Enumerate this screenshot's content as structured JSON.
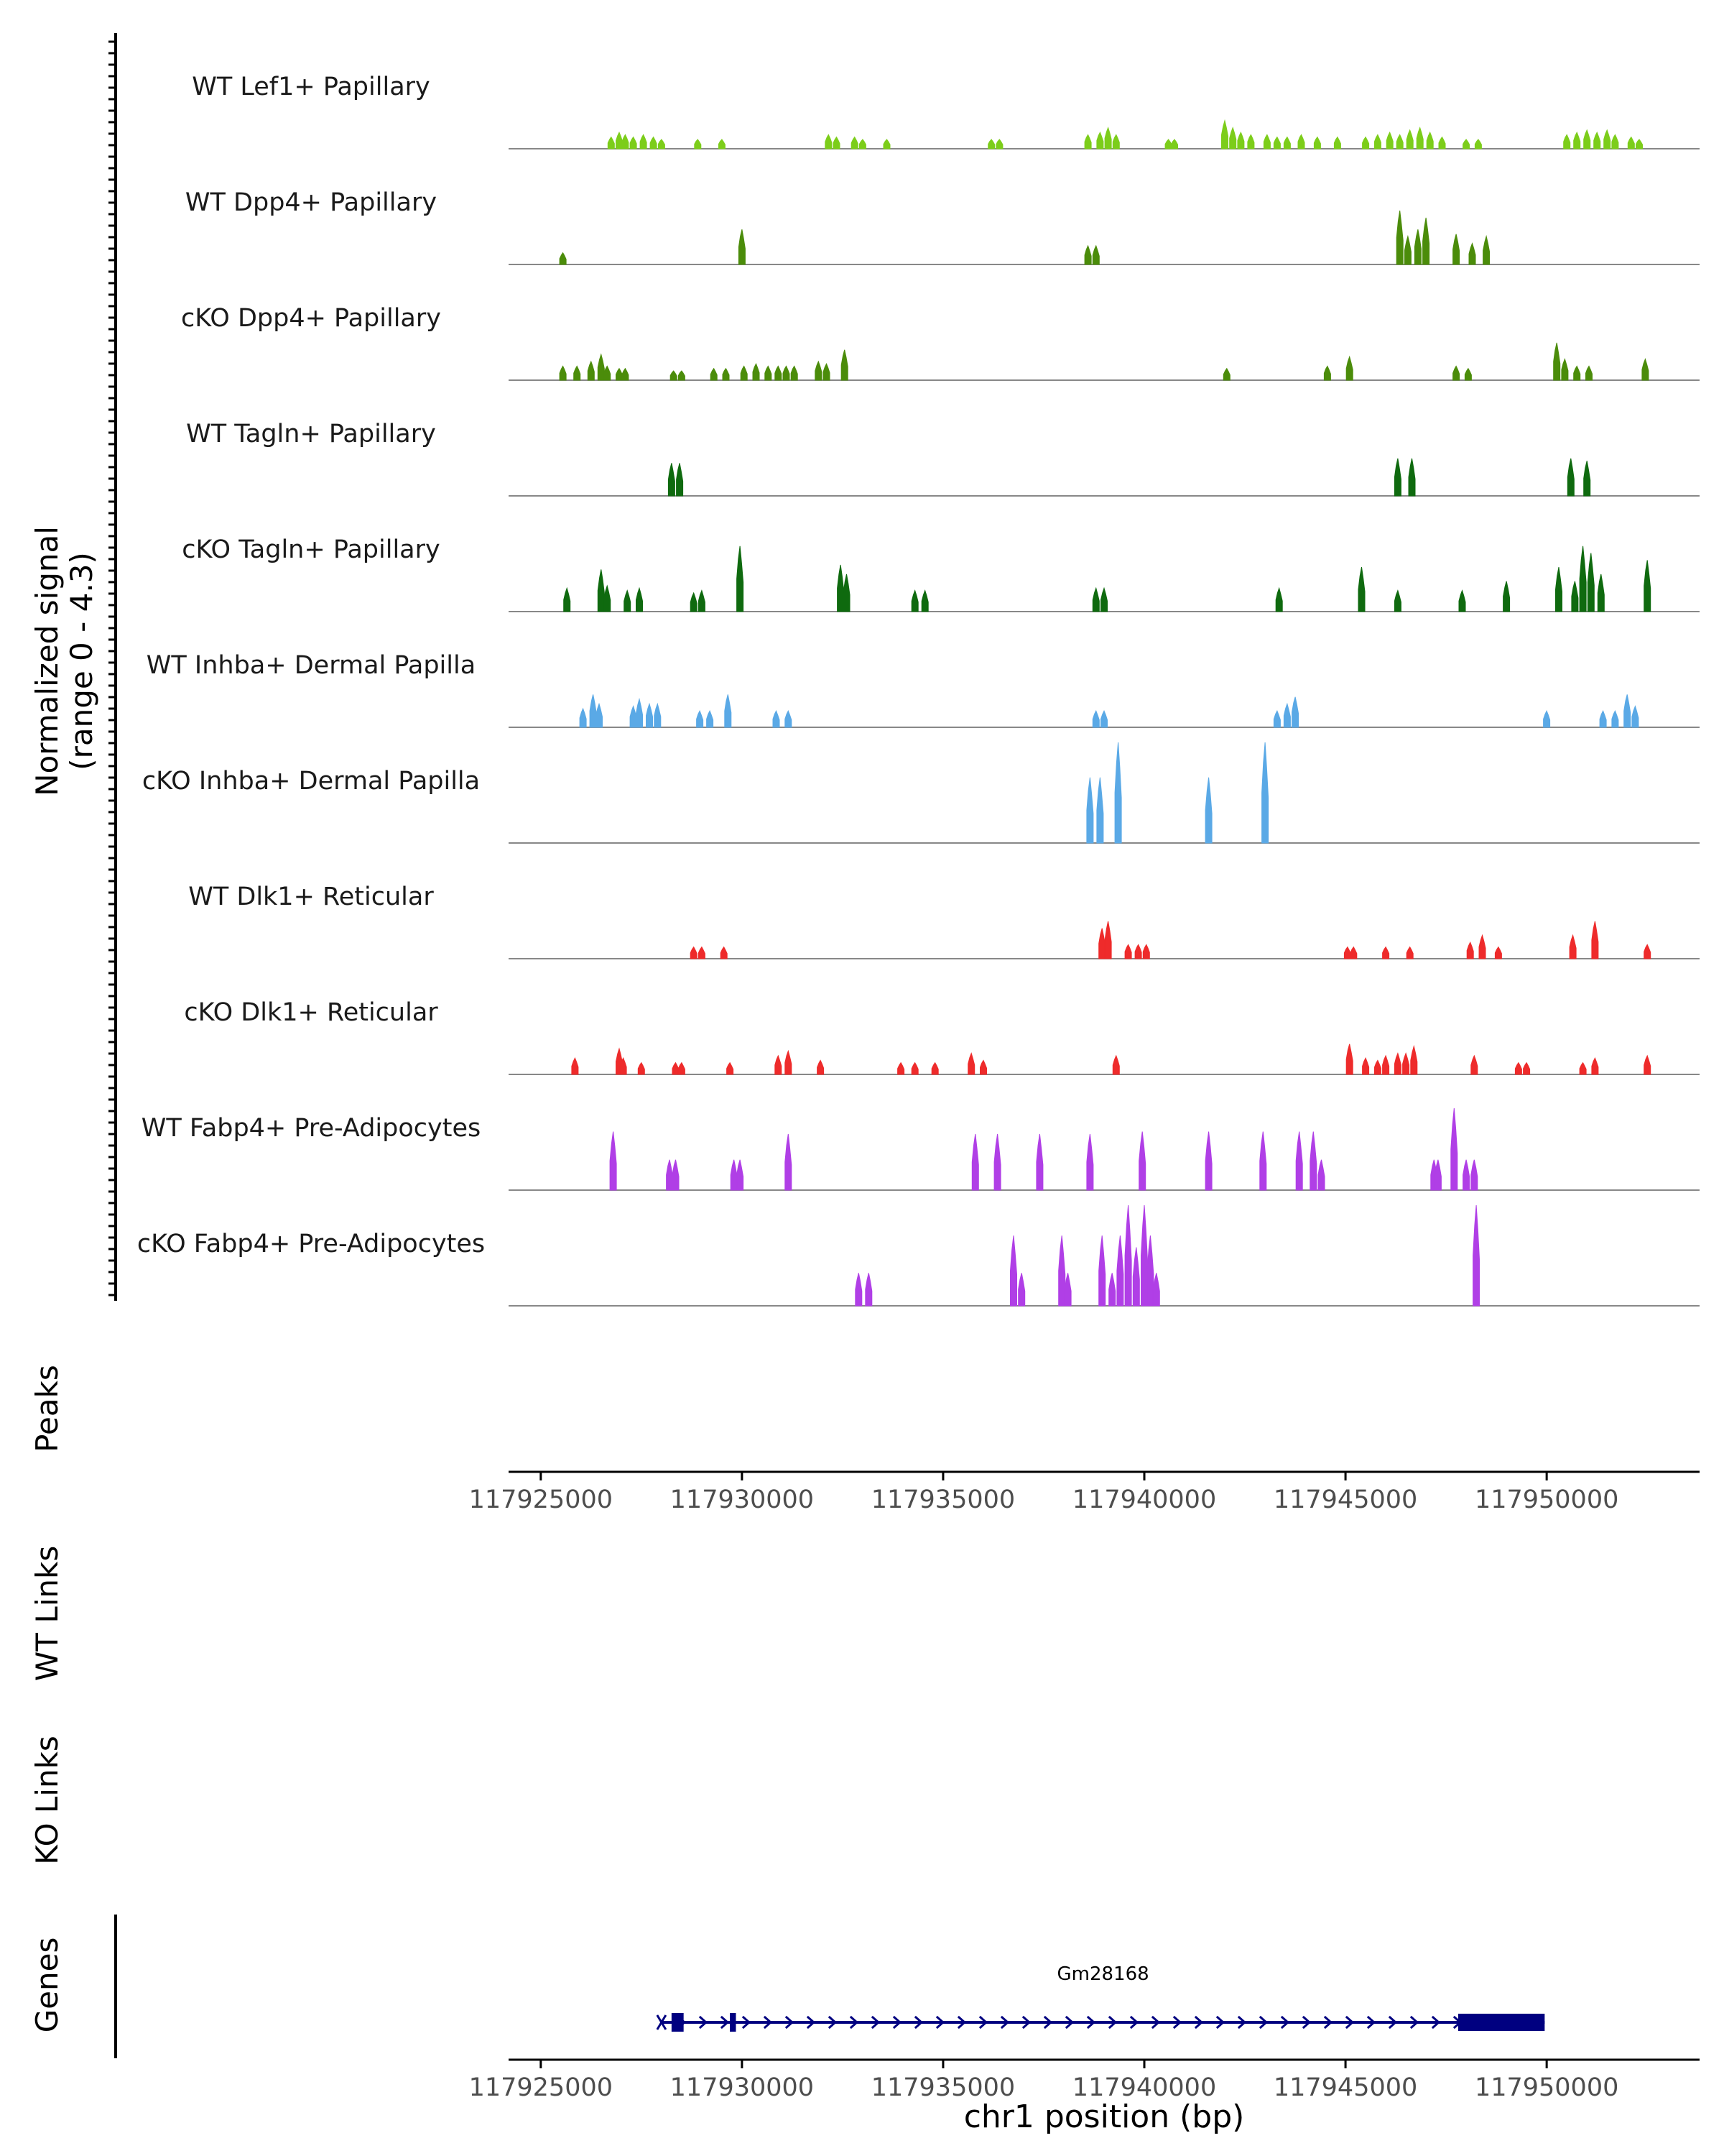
{
  "chart_data": {
    "type": "area",
    "title": "",
    "signal_axis": {
      "label_line1": "Normalized signal",
      "label_line2": "(range 0 - 4.3)",
      "ylim": [
        0,
        4.3
      ]
    },
    "colors": {
      "lef1": "#7CCD1A",
      "dpp4": "#4B8C0A",
      "tagln": "#0F6A0F",
      "inhba": "#5AA9E6",
      "dlk1": "#EE2B2B",
      "fabp4": "#B03FE6",
      "gene": "#000080",
      "baseline": "#888888",
      "axis": "#000000"
    },
    "tracks": [
      {
        "name": "WT Lef1+ Papillary",
        "color_key": "lef1",
        "peaks": [
          [
            117926750,
            0.5
          ],
          [
            117926950,
            0.7
          ],
          [
            117927100,
            0.6
          ],
          [
            117927300,
            0.5
          ],
          [
            117927550,
            0.6
          ],
          [
            117927800,
            0.5
          ],
          [
            117928000,
            0.4
          ],
          [
            117928900,
            0.4
          ],
          [
            117929500,
            0.4
          ],
          [
            117932150,
            0.6
          ],
          [
            117932350,
            0.5
          ],
          [
            117932800,
            0.5
          ],
          [
            117933000,
            0.4
          ],
          [
            117933600,
            0.4
          ],
          [
            117936200,
            0.4
          ],
          [
            117936400,
            0.4
          ],
          [
            117938600,
            0.6
          ],
          [
            117938900,
            0.7
          ],
          [
            117939100,
            0.9
          ],
          [
            117939300,
            0.6
          ],
          [
            117940600,
            0.4
          ],
          [
            117940750,
            0.4
          ],
          [
            117942000,
            1.2
          ],
          [
            117942200,
            0.9
          ],
          [
            117942400,
            0.7
          ],
          [
            117942650,
            0.6
          ],
          [
            117943050,
            0.6
          ],
          [
            117943300,
            0.5
          ],
          [
            117943550,
            0.5
          ],
          [
            117943900,
            0.6
          ],
          [
            117944300,
            0.5
          ],
          [
            117944800,
            0.5
          ],
          [
            117945500,
            0.5
          ],
          [
            117945800,
            0.6
          ],
          [
            117946100,
            0.7
          ],
          [
            117946350,
            0.6
          ],
          [
            117946600,
            0.8
          ],
          [
            117946850,
            0.9
          ],
          [
            117947100,
            0.7
          ],
          [
            117947400,
            0.5
          ],
          [
            117948000,
            0.4
          ],
          [
            117948300,
            0.4
          ],
          [
            117950500,
            0.6
          ],
          [
            117950750,
            0.7
          ],
          [
            117951000,
            0.8
          ],
          [
            117951250,
            0.7
          ],
          [
            117951500,
            0.8
          ],
          [
            117951700,
            0.6
          ],
          [
            117952100,
            0.5
          ],
          [
            117952300,
            0.4
          ]
        ]
      },
      {
        "name": "WT Dpp4+ Papillary",
        "color_key": "dpp4",
        "peaks": [
          [
            117925550,
            0.5
          ],
          [
            117930000,
            1.5
          ],
          [
            117938600,
            0.8
          ],
          [
            117938800,
            0.8
          ],
          [
            117946350,
            2.3
          ],
          [
            117946550,
            1.2
          ],
          [
            117946800,
            1.5
          ],
          [
            117947000,
            2.0
          ],
          [
            117947750,
            1.3
          ],
          [
            117948150,
            0.9
          ],
          [
            117948500,
            1.2
          ]
        ]
      },
      {
        "name": "cKO Dpp4+ Papillary",
        "color_key": "dpp4",
        "peaks": [
          [
            117925550,
            0.6
          ],
          [
            117925900,
            0.6
          ],
          [
            117926250,
            0.8
          ],
          [
            117926500,
            1.1
          ],
          [
            117926650,
            0.6
          ],
          [
            117926950,
            0.5
          ],
          [
            117927100,
            0.5
          ],
          [
            117928300,
            0.4
          ],
          [
            117928500,
            0.4
          ],
          [
            117929300,
            0.5
          ],
          [
            117929600,
            0.5
          ],
          [
            117930050,
            0.6
          ],
          [
            117930350,
            0.7
          ],
          [
            117930650,
            0.6
          ],
          [
            117930900,
            0.6
          ],
          [
            117931100,
            0.6
          ],
          [
            117931300,
            0.6
          ],
          [
            117931900,
            0.8
          ],
          [
            117932100,
            0.7
          ],
          [
            117932550,
            1.3
          ],
          [
            117942050,
            0.5
          ],
          [
            117944550,
            0.6
          ],
          [
            117945100,
            1.0
          ],
          [
            117947750,
            0.6
          ],
          [
            117948050,
            0.5
          ],
          [
            117950250,
            1.6
          ],
          [
            117950450,
            0.9
          ],
          [
            117950750,
            0.6
          ],
          [
            117951050,
            0.6
          ],
          [
            117952450,
            0.9
          ]
        ]
      },
      {
        "name": "WT Tagln+ Papillary",
        "color_key": "tagln",
        "peaks": [
          [
            117928250,
            1.4
          ],
          [
            117928450,
            1.4
          ],
          [
            117946300,
            1.6
          ],
          [
            117946650,
            1.6
          ],
          [
            117950600,
            1.6
          ],
          [
            117951000,
            1.5
          ]
        ]
      },
      {
        "name": "cKO Tagln+ Papillary",
        "color_key": "tagln",
        "peaks": [
          [
            117925650,
            1.0
          ],
          [
            117926500,
            1.8
          ],
          [
            117926650,
            1.1
          ],
          [
            117927150,
            0.9
          ],
          [
            117927450,
            1.0
          ],
          [
            117928800,
            0.8
          ],
          [
            117929000,
            0.9
          ],
          [
            117929950,
            2.8
          ],
          [
            117932450,
            2.0
          ],
          [
            117932600,
            1.6
          ],
          [
            117934300,
            0.9
          ],
          [
            117934550,
            0.9
          ],
          [
            117938800,
            1.0
          ],
          [
            117939000,
            1.0
          ],
          [
            117943350,
            1.0
          ],
          [
            117945400,
            1.9
          ],
          [
            117946300,
            0.9
          ],
          [
            117947900,
            0.9
          ],
          [
            117949000,
            1.3
          ],
          [
            117950300,
            1.9
          ],
          [
            117950700,
            1.3
          ],
          [
            117950900,
            2.8
          ],
          [
            117951100,
            2.5
          ],
          [
            117951350,
            1.6
          ],
          [
            117952500,
            2.2
          ]
        ]
      },
      {
        "name": "WT Inhba+ Dermal Papilla",
        "color_key": "inhba",
        "peaks": [
          [
            117926050,
            0.8
          ],
          [
            117926300,
            1.4
          ],
          [
            117926450,
            1.0
          ],
          [
            117927300,
            0.9
          ],
          [
            117927450,
            1.2
          ],
          [
            117927700,
            1.0
          ],
          [
            117927900,
            1.0
          ],
          [
            117928950,
            0.7
          ],
          [
            117929200,
            0.7
          ],
          [
            117929650,
            1.4
          ],
          [
            117930850,
            0.7
          ],
          [
            117931150,
            0.7
          ],
          [
            117938800,
            0.7
          ],
          [
            117939000,
            0.7
          ],
          [
            117943300,
            0.7
          ],
          [
            117943550,
            1.0
          ],
          [
            117943750,
            1.3
          ],
          [
            117950000,
            0.7
          ],
          [
            117951400,
            0.7
          ],
          [
            117951700,
            0.7
          ],
          [
            117952000,
            1.4
          ],
          [
            117952200,
            0.9
          ]
        ]
      },
      {
        "name": "cKO Inhba+ Dermal Papilla",
        "color_key": "inhba",
        "peaks": [
          [
            117938650,
            2.8
          ],
          [
            117938900,
            2.8
          ],
          [
            117939350,
            4.3
          ],
          [
            117941600,
            2.8
          ],
          [
            117943000,
            4.3
          ]
        ]
      },
      {
        "name": "WT Dlk1+ Reticular",
        "color_key": "dlk1",
        "peaks": [
          [
            117928800,
            0.5
          ],
          [
            117929000,
            0.5
          ],
          [
            117929550,
            0.5
          ],
          [
            117938950,
            1.3
          ],
          [
            117939100,
            1.6
          ],
          [
            117939600,
            0.6
          ],
          [
            117939850,
            0.6
          ],
          [
            117940050,
            0.6
          ],
          [
            117945050,
            0.5
          ],
          [
            117945200,
            0.5
          ],
          [
            117946000,
            0.5
          ],
          [
            117946600,
            0.5
          ],
          [
            117948100,
            0.7
          ],
          [
            117948400,
            1.0
          ],
          [
            117948800,
            0.5
          ],
          [
            117950650,
            1.0
          ],
          [
            117951200,
            1.6
          ],
          [
            117952500,
            0.6
          ]
        ]
      },
      {
        "name": "cKO Dlk1+ Reticular",
        "color_key": "dlk1",
        "peaks": [
          [
            117925850,
            0.7
          ],
          [
            117926950,
            1.1
          ],
          [
            117927050,
            0.7
          ],
          [
            117927500,
            0.5
          ],
          [
            117928350,
            0.5
          ],
          [
            117928500,
            0.5
          ],
          [
            117929700,
            0.5
          ],
          [
            117930900,
            0.8
          ],
          [
            117931150,
            1.0
          ],
          [
            117931950,
            0.6
          ],
          [
            117933950,
            0.5
          ],
          [
            117934300,
            0.5
          ],
          [
            117934800,
            0.5
          ],
          [
            117935700,
            0.9
          ],
          [
            117936000,
            0.6
          ],
          [
            117939300,
            0.8
          ],
          [
            117945100,
            1.3
          ],
          [
            117945500,
            0.7
          ],
          [
            117945800,
            0.6
          ],
          [
            117946000,
            0.8
          ],
          [
            117946300,
            0.9
          ],
          [
            117946500,
            0.9
          ],
          [
            117946700,
            1.2
          ],
          [
            117948200,
            0.8
          ],
          [
            117949300,
            0.5
          ],
          [
            117949500,
            0.5
          ],
          [
            117950900,
            0.5
          ],
          [
            117951200,
            0.7
          ],
          [
            117952500,
            0.8
          ]
        ]
      },
      {
        "name": "WT Fabp4+ Pre-Adipocytes",
        "color_key": "fabp4",
        "peaks": [
          [
            117926800,
            2.5
          ],
          [
            117928200,
            1.3
          ],
          [
            117928350,
            1.3
          ],
          [
            117929800,
            1.3
          ],
          [
            117929950,
            1.3
          ],
          [
            117931150,
            2.4
          ],
          [
            117935800,
            2.4
          ],
          [
            117936350,
            2.4
          ],
          [
            117937400,
            2.4
          ],
          [
            117938650,
            2.4
          ],
          [
            117939950,
            2.5
          ],
          [
            117941600,
            2.5
          ],
          [
            117942950,
            2.5
          ],
          [
            117943850,
            2.5
          ],
          [
            117944200,
            2.5
          ],
          [
            117944400,
            1.3
          ],
          [
            117947200,
            1.3
          ],
          [
            117947300,
            1.3
          ],
          [
            117947700,
            3.5
          ],
          [
            117948000,
            1.3
          ],
          [
            117948200,
            1.3
          ]
        ]
      },
      {
        "name": "cKO Fabp4+ Pre-Adipocytes",
        "color_key": "fabp4",
        "peaks": [
          [
            117932900,
            1.4
          ],
          [
            117933150,
            1.4
          ],
          [
            117936750,
            3.0
          ],
          [
            117936950,
            1.4
          ],
          [
            117937950,
            3.0
          ],
          [
            117938100,
            1.4
          ],
          [
            117938950,
            3.0
          ],
          [
            117939200,
            1.4
          ],
          [
            117939400,
            3.0
          ],
          [
            117939600,
            4.3
          ],
          [
            117939800,
            2.5
          ],
          [
            117940000,
            4.3
          ],
          [
            117940150,
            3.0
          ],
          [
            117940300,
            1.4
          ],
          [
            117948250,
            4.3
          ]
        ]
      }
    ],
    "peaks_track": {
      "label": "Peaks"
    },
    "link_tracks": [
      {
        "label": "WT Links"
      },
      {
        "label": "KO Links"
      }
    ],
    "genes_track": {
      "label": "Genes",
      "gene_name": "Gm28168",
      "start": 117928000,
      "end": 117949950,
      "thick_blocks": [
        [
          117928250,
          117928550
        ],
        [
          117929700,
          117929850
        ],
        [
          117947800,
          117949950
        ]
      ],
      "strand": "+"
    },
    "x_axis": {
      "label": "chr1 position (bp)",
      "xlim": [
        117924200,
        117953800
      ],
      "ticks": [
        117925000,
        117930000,
        117935000,
        117940000,
        117945000,
        117950000
      ],
      "tick_labels": [
        "117925000",
        "117930000",
        "117935000",
        "117940000",
        "117945000",
        "117950000"
      ]
    }
  }
}
